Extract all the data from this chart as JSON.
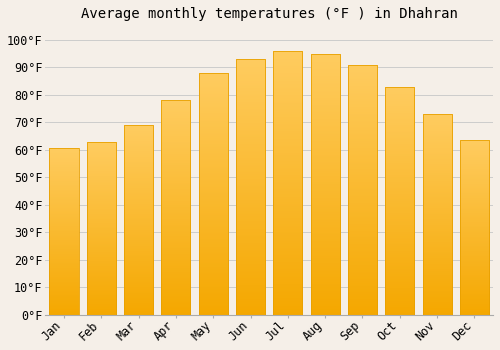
{
  "months": [
    "Jan",
    "Feb",
    "Mar",
    "Apr",
    "May",
    "Jun",
    "Jul",
    "Aug",
    "Sep",
    "Oct",
    "Nov",
    "Dec"
  ],
  "values": [
    60.5,
    63,
    69,
    78,
    88,
    93,
    96,
    95,
    91,
    83,
    73,
    63.5
  ],
  "bar_color_top": "#F5A800",
  "bar_color_bottom": "#FFCC60",
  "bar_edge_color": "#E8A000",
  "title": "Average monthly temperatures (°F ) in Dhahran",
  "ylim": [
    0,
    105
  ],
  "yticks": [
    0,
    10,
    20,
    30,
    40,
    50,
    60,
    70,
    80,
    90,
    100
  ],
  "ytick_labels": [
    "0°F",
    "10°F",
    "20°F",
    "30°F",
    "40°F",
    "50°F",
    "60°F",
    "70°F",
    "80°F",
    "90°F",
    "100°F"
  ],
  "background_color": "#F5EFE8",
  "grid_color": "#CCCCCC",
  "title_fontsize": 10,
  "tick_fontsize": 8.5,
  "font_family": "monospace"
}
